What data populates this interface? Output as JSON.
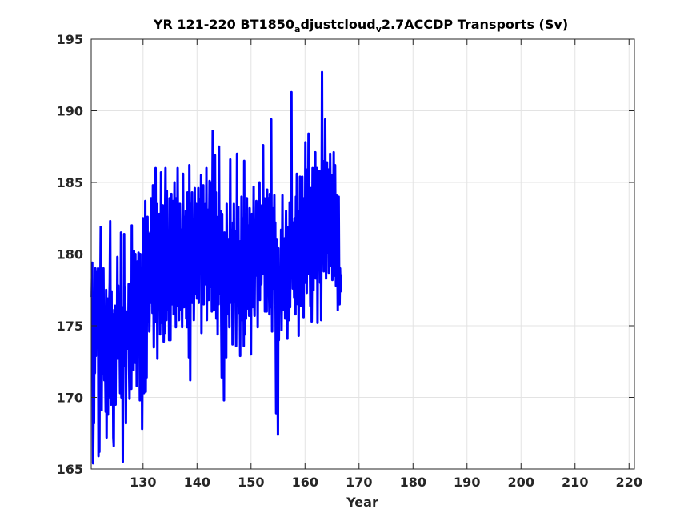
{
  "chart_data": {
    "type": "line",
    "title": {
      "parts": [
        {
          "text": "YR 121-220 BT1850",
          "style": "normal"
        },
        {
          "text": "a",
          "style": "sub"
        },
        {
          "text": "djustcloud",
          "style": "normal"
        },
        {
          "text": "v",
          "style": "sub"
        },
        {
          "text": "2.7ACCDP Transports (Sv)",
          "style": "normal"
        }
      ]
    },
    "xlabel": "Year",
    "ylabel": "",
    "xlim": [
      120.4,
      221
    ],
    "ylim": [
      165,
      195
    ],
    "xticks": [
      130,
      140,
      150,
      160,
      170,
      180,
      190,
      200,
      210,
      220
    ],
    "yticks": [
      165,
      170,
      175,
      180,
      185,
      190,
      195
    ],
    "grid": true,
    "series": [
      {
        "color": "#0000ff",
        "line_width": 3,
        "x_start": 120.5,
        "x_step": 0.0833,
        "values": [
          177.0,
          179.4,
          175.0,
          165.4,
          169.2,
          168.2,
          176.0,
          171.7,
          179.0,
          172.9,
          178.8,
          176.0,
          174.2,
          173.6,
          179.0,
          165.9,
          172.0,
          166.2,
          174.6,
          177.6,
          181.9,
          174.6,
          169.1,
          175.5,
          171.6,
          173.8,
          179.0,
          174.1,
          171.2,
          176.0,
          172.2,
          169.0,
          177.5,
          167.2,
          175.0,
          176.9,
          168.8,
          173.0,
          170.0,
          176.5,
          178.0,
          182.3,
          173.8,
          169.5,
          177.4,
          171.1,
          175.8,
          173.0,
          167.2,
          166.6,
          176.1,
          170.5,
          176.4,
          169.5,
          175.4,
          174.7,
          174.0,
          179.8,
          172.7,
          177.8,
          173.0,
          176.3,
          173.7,
          170.3,
          173.5,
          181.5,
          170.0,
          173.3,
          175.4,
          165.5,
          176.3,
          172.2,
          181.4,
          172.4,
          177.7,
          175.2,
          168.2,
          176.0,
          173.6,
          174.0,
          174.8,
          173.4,
          177.9,
          172.1,
          169.9,
          175.2,
          176.6,
          176.0,
          170.6,
          182.0,
          173.1,
          172.2,
          177.4,
          171.9,
          180.2,
          174.5,
          175.3,
          180.0,
          172.4,
          178.5,
          170.8,
          176.7,
          179.5,
          177.0,
          180.1,
          174.7,
          175.2,
          169.8,
          180.0,
          174.1,
          177.4,
          178.6,
          167.8,
          172.7,
          182.5,
          174.6,
          170.3,
          179.7,
          175.2,
          183.7,
          170.4,
          177.8,
          171.4,
          180.7,
          182.6,
          175.3,
          181.4,
          178.3,
          174.6,
          177.1,
          181.5,
          176.6,
          183.9,
          179.1,
          182.1,
          175.9,
          184.8,
          178.0,
          173.5,
          180.0,
          184.5,
          175.3,
          186.0,
          176.0,
          183.5,
          178.7,
          172.7,
          181.9,
          179.5,
          176.9,
          182.8,
          180.5,
          174.4,
          177.4,
          185.7,
          178.0,
          175.2,
          181.2,
          183.4,
          180.8,
          173.9,
          177.3,
          174.5,
          182.4,
          186.0,
          178.0,
          175.4,
          184.4,
          178.1,
          176.1,
          181.2,
          179.7,
          174.0,
          183.9,
          180.0,
          174.0,
          181.6,
          184.2,
          176.5,
          179.6,
          178.4,
          183.7,
          175.8,
          180.9,
          185.0,
          177.1,
          179.6,
          174.9,
          183.9,
          176.4,
          179.9,
          186.0,
          178.8,
          181.3,
          175.4,
          180.8,
          183.5,
          178.2,
          176.1,
          181.7,
          177.9,
          174.9,
          182.3,
          185.6,
          178.6,
          176.3,
          182.6,
          180.7,
          178.1,
          183.0,
          175.5,
          178.9,
          174.9,
          184.3,
          176.6,
          181.5,
          172.8,
          186.2,
          178.6,
          171.2,
          183.5,
          181.0,
          179.2,
          184.3,
          176.6,
          180.9,
          182.3,
          175.4,
          179.4,
          184.6,
          177.2,
          181.8,
          183.5,
          179.6,
          176.9,
          182.5,
          178.0,
          184.6,
          176.6,
          183.8,
          179.2,
          181.7,
          178.6,
          185.5,
          174.5,
          183.4,
          180.0,
          178.5,
          184.8,
          176.5,
          181.9,
          180.4,
          177.9,
          183.5,
          178.3,
          186.0,
          175.4,
          182.5,
          178.6,
          183.1,
          176.8,
          181.6,
          185.1,
          179.2,
          181.9,
          177.7,
          185.0,
          176.0,
          182.7,
          188.6,
          178.5,
          184.0,
          176.1,
          180.9,
          186.9,
          178.0,
          184.3,
          175.5,
          181.8,
          179.2,
          174.4,
          182.6,
          176.5,
          187.5,
          178.0,
          181.9,
          177.2,
          183.0,
          175.4,
          171.4,
          182.8,
          176.2,
          179.5,
          174.1,
          169.8,
          181.5,
          176.4,
          180.7,
          178.0,
          172.8,
          183.5,
          177.5,
          179.2,
          181.0,
          175.8,
          179.9,
          174.9,
          181.0,
          186.6,
          177.7,
          179.5,
          176.6,
          181.7,
          173.7,
          182.2,
          178.8,
          183.5,
          177.0,
          176.7,
          181.6,
          176.2,
          173.6,
          178.2,
          187.0,
          176.7,
          179.4,
          183.3,
          175.9,
          180.8,
          178.0,
          172.9,
          180.9,
          176.0,
          184.0,
          175.4,
          182.5,
          178.3,
          180.7,
          173.6,
          186.5,
          177.1,
          174.4,
          180.0,
          175.5,
          178.4,
          183.9,
          176.2,
          182.0,
          178.2,
          179.2,
          175.7,
          183.2,
          177.9,
          181.6,
          173.0,
          180.9,
          182.8,
          176.3,
          181.6,
          179.3,
          184.7,
          177.2,
          175.7,
          180.8,
          178.5,
          179.9,
          183.7,
          181.5,
          180.5,
          174.9,
          182.2,
          178.3,
          180.4,
          185.0,
          176.8,
          183.4,
          179.3,
          177.9,
          180.4,
          182.3,
          181.0,
          187.6,
          178.6,
          180.2,
          183.9,
          176.0,
          182.5,
          178.9,
          181.2,
          176.0,
          184.5,
          179.0,
          180.2,
          183.9,
          178.1,
          175.8,
          184.2,
          181.0,
          176.3,
          189.4,
          180.1,
          174.6,
          183.2,
          178.4,
          177.6,
          180.0,
          184.1,
          176.5,
          182.2,
          174.7,
          168.9,
          181.0,
          176.0,
          172.6,
          167.4,
          180.4,
          174.0,
          178.7,
          177.7,
          179.0,
          176.2,
          181.7,
          174.7,
          178.6,
          184.1,
          176.1,
          180.6,
          178.0,
          176.4,
          181.1,
          175.5,
          179.7,
          183.0,
          177.7,
          181.8,
          174.1,
          179.0,
          181.9,
          177.1,
          175.4,
          183.6,
          176.3,
          180.7,
          179.4,
          191.3,
          178.6,
          181.2,
          177.6,
          182.2,
          179.7,
          177.0,
          182.5,
          181.1,
          175.8,
          184.0,
          178.5,
          185.6,
          180.3,
          176.5,
          183.0,
          174.3,
          181.3,
          178.8,
          185.4,
          179.8,
          176.4,
          182.7,
          177.5,
          185.4,
          178.9,
          181.8,
          175.6,
          183.9,
          179.6,
          178.0,
          187.8,
          181.5,
          183.6,
          177.3,
          185.9,
          180.4,
          181.7,
          188.4,
          178.6,
          182.9,
          179.8,
          176.4,
          184.6,
          182.3,
          175.3,
          180.0,
          186.0,
          181.0,
          177.5,
          184.1,
          182.0,
          180.7,
          187.1,
          178.3,
          184.1,
          182.7,
          186.0,
          175.2,
          183.0,
          181.9,
          179.1,
          185.8,
          182.9,
          178.0,
          184.7,
          175.4,
          182.8,
          192.7,
          180.7,
          186.5,
          183.0,
          178.8,
          184.5,
          180.8,
          189.4,
          182.6,
          178.3,
          184.8,
          186.4,
          180.1,
          182.2,
          185.9,
          178.7,
          184.0,
          180.8,
          187.0,
          183.0,
          179.2,
          185.5,
          181.7,
          178.2,
          183.4,
          182.3,
          187.1,
          178.5,
          183.5,
          186.2,
          181.0,
          177.8,
          184.1,
          178.9,
          180.7,
          176.1,
          183.2,
          184.0,
          178.7,
          176.5,
          179.0,
          177.4,
          178.6
        ]
      }
    ]
  }
}
